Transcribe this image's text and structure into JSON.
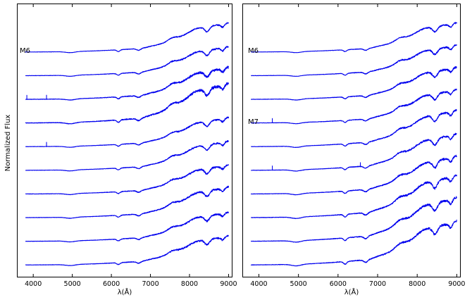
{
  "chart_data": [
    {
      "type": "line",
      "panel": "left",
      "xlabel": "λ(Å)",
      "ylabel": "Normalized Flux",
      "xlim": [
        3600,
        9100
      ],
      "x_ticks": [
        4000,
        5000,
        6000,
        7000,
        8000,
        9000
      ],
      "y_ticks_visible": false,
      "grid": false,
      "line_color": "#0000ee",
      "spectrum_start": 3800,
      "spectrum_end": 9000,
      "annotations": [
        {
          "text": "M6",
          "spectrum": 0
        }
      ],
      "series": [
        {
          "offset": 0,
          "amp": 1.0,
          "noise": 0.6,
          "emission": [],
          "strong_emission": []
        },
        {
          "offset": 1,
          "amp": 1.0,
          "noise": 0.7,
          "emission": [
            4102
          ],
          "strong_emission": []
        },
        {
          "offset": 2,
          "amp": 1.1,
          "noise": 1.0,
          "emission": [
            3835,
            4340
          ],
          "strong_emission": [
            4102
          ]
        },
        {
          "offset": 3,
          "amp": 1.35,
          "noise": 1.2,
          "emission": [],
          "strong_emission": []
        },
        {
          "offset": 4,
          "amp": 1.0,
          "noise": 0.7,
          "emission": [
            4340
          ],
          "strong_emission": [
            4102
          ]
        },
        {
          "offset": 5,
          "amp": 1.0,
          "noise": 0.7,
          "emission": [
            4102
          ],
          "strong_emission": []
        },
        {
          "offset": 6,
          "amp": 1.0,
          "noise": 0.8,
          "emission": [
            4102
          ],
          "strong_emission": []
        },
        {
          "offset": 7,
          "amp": 1.05,
          "noise": 0.8,
          "emission": [
            4102
          ],
          "strong_emission": []
        },
        {
          "offset": 8,
          "amp": 1.0,
          "noise": 0.8,
          "emission": [],
          "strong_emission": []
        },
        {
          "offset": 9,
          "amp": 1.0,
          "noise": 0.8,
          "emission": [
            4102
          ],
          "strong_emission": []
        }
      ]
    },
    {
      "type": "line",
      "panel": "right",
      "xlabel": "λ(Å)",
      "xlim": [
        3600,
        9100
      ],
      "x_ticks": [
        4000,
        5000,
        6000,
        7000,
        8000,
        9000
      ],
      "y_ticks_visible": false,
      "grid": false,
      "line_color": "#0000ee",
      "spectrum_start": 3800,
      "spectrum_end": 9000,
      "annotations": [
        {
          "text": "M6",
          "spectrum": 0
        },
        {
          "text": "M7",
          "spectrum": 3
        }
      ],
      "series": [
        {
          "offset": 0,
          "amp": 1.0,
          "noise": 0.6,
          "emission": [],
          "strong_emission": []
        },
        {
          "offset": 1,
          "amp": 1.05,
          "noise": 0.7,
          "emission": [],
          "strong_emission": []
        },
        {
          "offset": 2,
          "amp": 1.1,
          "noise": 0.8,
          "emission": [],
          "strong_emission": []
        },
        {
          "offset": 3,
          "amp": 1.15,
          "noise": 0.8,
          "emission": [
            4102,
            4340
          ],
          "strong_emission": []
        },
        {
          "offset": 4,
          "amp": 1.25,
          "noise": 0.8,
          "emission": [
            4102
          ],
          "strong_emission": []
        },
        {
          "offset": 5,
          "amp": 1.25,
          "noise": 0.8,
          "emission": [
            4102,
            4340,
            6563
          ],
          "strong_emission": []
        },
        {
          "offset": 6,
          "amp": 1.3,
          "noise": 0.9,
          "emission": [
            4102
          ],
          "strong_emission": []
        },
        {
          "offset": 7,
          "amp": 1.45,
          "noise": 1.0,
          "emission": [],
          "strong_emission": []
        },
        {
          "offset": 8,
          "amp": 1.5,
          "noise": 1.0,
          "emission": [
            4102
          ],
          "strong_emission": []
        },
        {
          "offset": 9,
          "amp": 1.5,
          "noise": 1.0,
          "emission": [
            4102
          ],
          "strong_emission": []
        }
      ]
    }
  ]
}
